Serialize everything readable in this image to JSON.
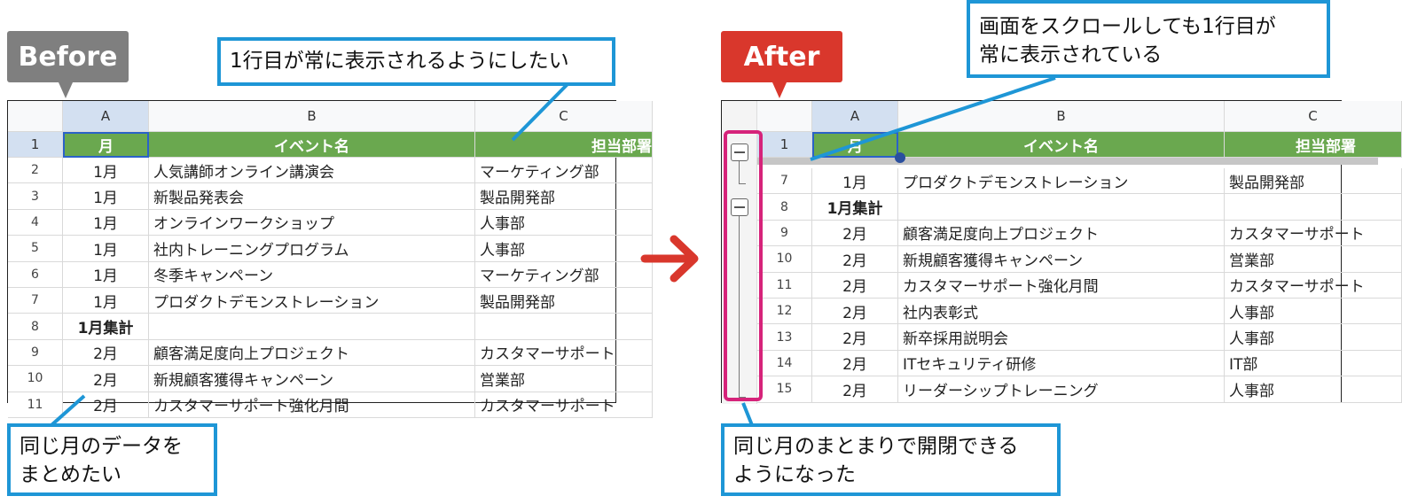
{
  "before": {
    "tag": "Before",
    "tag_color": "#7f7f7f",
    "callout_top": "1行目が常に表示されるようにしたい",
    "callout_bottom": [
      "同じ月のデータを",
      "まとめたい"
    ],
    "columns": [
      "A",
      "B",
      "C"
    ],
    "header_row": {
      "num": "1",
      "cells": [
        "月",
        "イベント名",
        "担当部署"
      ]
    },
    "rows": [
      {
        "num": "2",
        "cells": [
          "1月",
          "人気講師オンライン講演会",
          "マーケティング部"
        ]
      },
      {
        "num": "3",
        "cells": [
          "1月",
          "新製品発表会",
          "製品開発部"
        ]
      },
      {
        "num": "4",
        "cells": [
          "1月",
          "オンラインワークショップ",
          "人事部"
        ]
      },
      {
        "num": "5",
        "cells": [
          "1月",
          "社内トレーニングプログラム",
          "人事部"
        ]
      },
      {
        "num": "6",
        "cells": [
          "1月",
          "冬季キャンペーン",
          "マーケティング部"
        ]
      },
      {
        "num": "7",
        "cells": [
          "1月",
          "プロダクトデモンストレーション",
          "製品開発部"
        ]
      },
      {
        "num": "8",
        "cells": [
          "1月集計",
          "",
          ""
        ],
        "bold": true
      },
      {
        "num": "9",
        "cells": [
          "2月",
          "顧客満足度向上プロジェクト",
          "カスタマーサポート"
        ]
      },
      {
        "num": "10",
        "cells": [
          "2月",
          "新規顧客獲得キャンペーン",
          "営業部"
        ]
      },
      {
        "num": "11",
        "cells": [
          "2月",
          "カスタマーサポート強化月間",
          "カスタマーサポート"
        ]
      }
    ]
  },
  "after": {
    "tag": "After",
    "tag_color": "#d9372c",
    "callout_top": [
      "画面をスクロールしても1行目が",
      "常に表示されている"
    ],
    "callout_bottom": [
      "同じ月のまとまりで開閉できる",
      "ようになった"
    ],
    "columns": [
      "A",
      "B",
      "C"
    ],
    "header_row": {
      "num": "1",
      "cells": [
        "月",
        "イベント名",
        "担当部署"
      ]
    },
    "group_toggle_icon": "minus-square-icon",
    "rows": [
      {
        "num": "7",
        "cells": [
          "1月",
          "プロダクトデモンストレーション",
          "製品開発部"
        ]
      },
      {
        "num": "8",
        "cells": [
          "1月集計",
          "",
          ""
        ],
        "bold": true
      },
      {
        "num": "9",
        "cells": [
          "2月",
          "顧客満足度向上プロジェクト",
          "カスタマーサポート"
        ]
      },
      {
        "num": "10",
        "cells": [
          "2月",
          "新規顧客獲得キャンペーン",
          "営業部"
        ]
      },
      {
        "num": "11",
        "cells": [
          "2月",
          "カスタマーサポート強化月間",
          "カスタマーサポート"
        ]
      },
      {
        "num": "12",
        "cells": [
          "2月",
          "社内表彰式",
          "人事部"
        ]
      },
      {
        "num": "13",
        "cells": [
          "2月",
          "新卒採用説明会",
          "人事部"
        ]
      },
      {
        "num": "14",
        "cells": [
          "2月",
          "ITセキュリティ研修",
          "IT部"
        ]
      },
      {
        "num": "15",
        "cells": [
          "2月",
          "リーダーシップトレーニング",
          "人事部"
        ]
      }
    ]
  },
  "colors": {
    "callout_border": "#1e96d6",
    "header_green": "#6aa84f",
    "group_highlight": "#d6237a",
    "arrow": "#d9372c"
  }
}
